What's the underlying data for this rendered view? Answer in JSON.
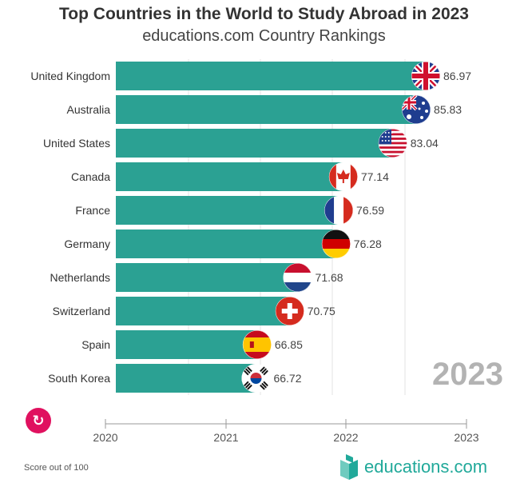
{
  "header": {
    "title": "Top Countries in the World to Study Abroad in 2023",
    "subtitle": "educations.com Country Rankings"
  },
  "controls": {
    "replay_icon": "replay-icon"
  },
  "footer": {
    "note": "Score out of 100",
    "logo_text": "educations.com"
  },
  "colors": {
    "bar": "#2ba193",
    "year_label": "#b3b3b3",
    "replay": "#e0115f",
    "brand": "#21a99a"
  },
  "chart_data": {
    "type": "bar",
    "orientation": "horizontal",
    "categories": [
      "United Kingdom",
      "Australia",
      "United States",
      "Canada",
      "France",
      "Germany",
      "Netherlands",
      "Switzerland",
      "Spain",
      "South Korea"
    ],
    "values": [
      86.97,
      85.83,
      83.04,
      77.14,
      76.59,
      76.28,
      71.68,
      70.75,
      66.85,
      66.72
    ],
    "flags": [
      "uk-flag-icon",
      "australia-flag-icon",
      "us-flag-icon",
      "canada-flag-icon",
      "france-flag-icon",
      "germany-flag-icon",
      "netherlands-flag-icon",
      "switzerland-flag-icon",
      "spain-flag-icon",
      "south-korea-flag-icon"
    ],
    "year_label": "2023",
    "timeline": {
      "ticks": [
        "2020",
        "2021",
        "2022",
        "2023"
      ],
      "current": "2023"
    },
    "xlim": [
      50,
      100
    ],
    "grid": true
  }
}
